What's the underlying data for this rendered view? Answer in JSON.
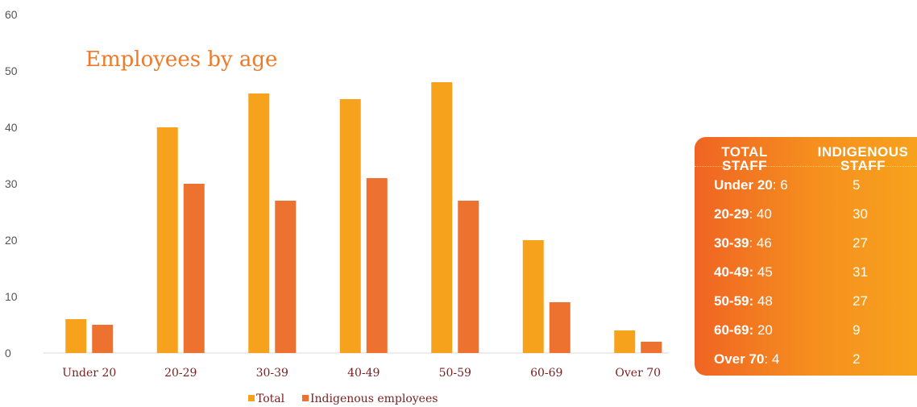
{
  "chart_data": {
    "type": "bar",
    "title": "Employees by age",
    "categories": [
      "Under 20",
      "20-29",
      "30-39",
      "40-49",
      "50-59",
      "60-69",
      "Over 70"
    ],
    "series": [
      {
        "name": "Total",
        "values": [
          6,
          40,
          46,
          45,
          48,
          20,
          4
        ],
        "color": "#f7a21d"
      },
      {
        "name": "Indigenous employees",
        "values": [
          5,
          30,
          27,
          31,
          27,
          9,
          2
        ],
        "color": "#ed7230"
      }
    ],
    "yticks": [
      0,
      10,
      20,
      30,
      40,
      50,
      60
    ],
    "ylim": [
      0,
      60
    ],
    "grid": false,
    "legend": "bottom"
  },
  "summary_table": {
    "header_total_line1": "TOTAL",
    "header_total_line2": "STAFF",
    "header_indigenous_line1": "INDIGENOUS",
    "header_indigenous_line2": "STAFF",
    "rows": [
      {
        "label": "Under 20",
        "sep": ": ",
        "total": "6",
        "indigenous": "5"
      },
      {
        "label": "20-29",
        "sep": ": ",
        "total": "40",
        "indigenous": "30"
      },
      {
        "label": "30-39",
        "sep": ": ",
        "total": "46",
        "indigenous": "27"
      },
      {
        "label": "40-49:",
        "sep": " ",
        "total": "45",
        "indigenous": "31"
      },
      {
        "label": "50-59:",
        "sep": " ",
        "total": "48",
        "indigenous": "27"
      },
      {
        "label": "60-69:",
        "sep": " ",
        "total": "20",
        "indigenous": "9"
      },
      {
        "label": "Over 70",
        "sep": ": ",
        "total": "4",
        "indigenous": "2"
      }
    ]
  }
}
